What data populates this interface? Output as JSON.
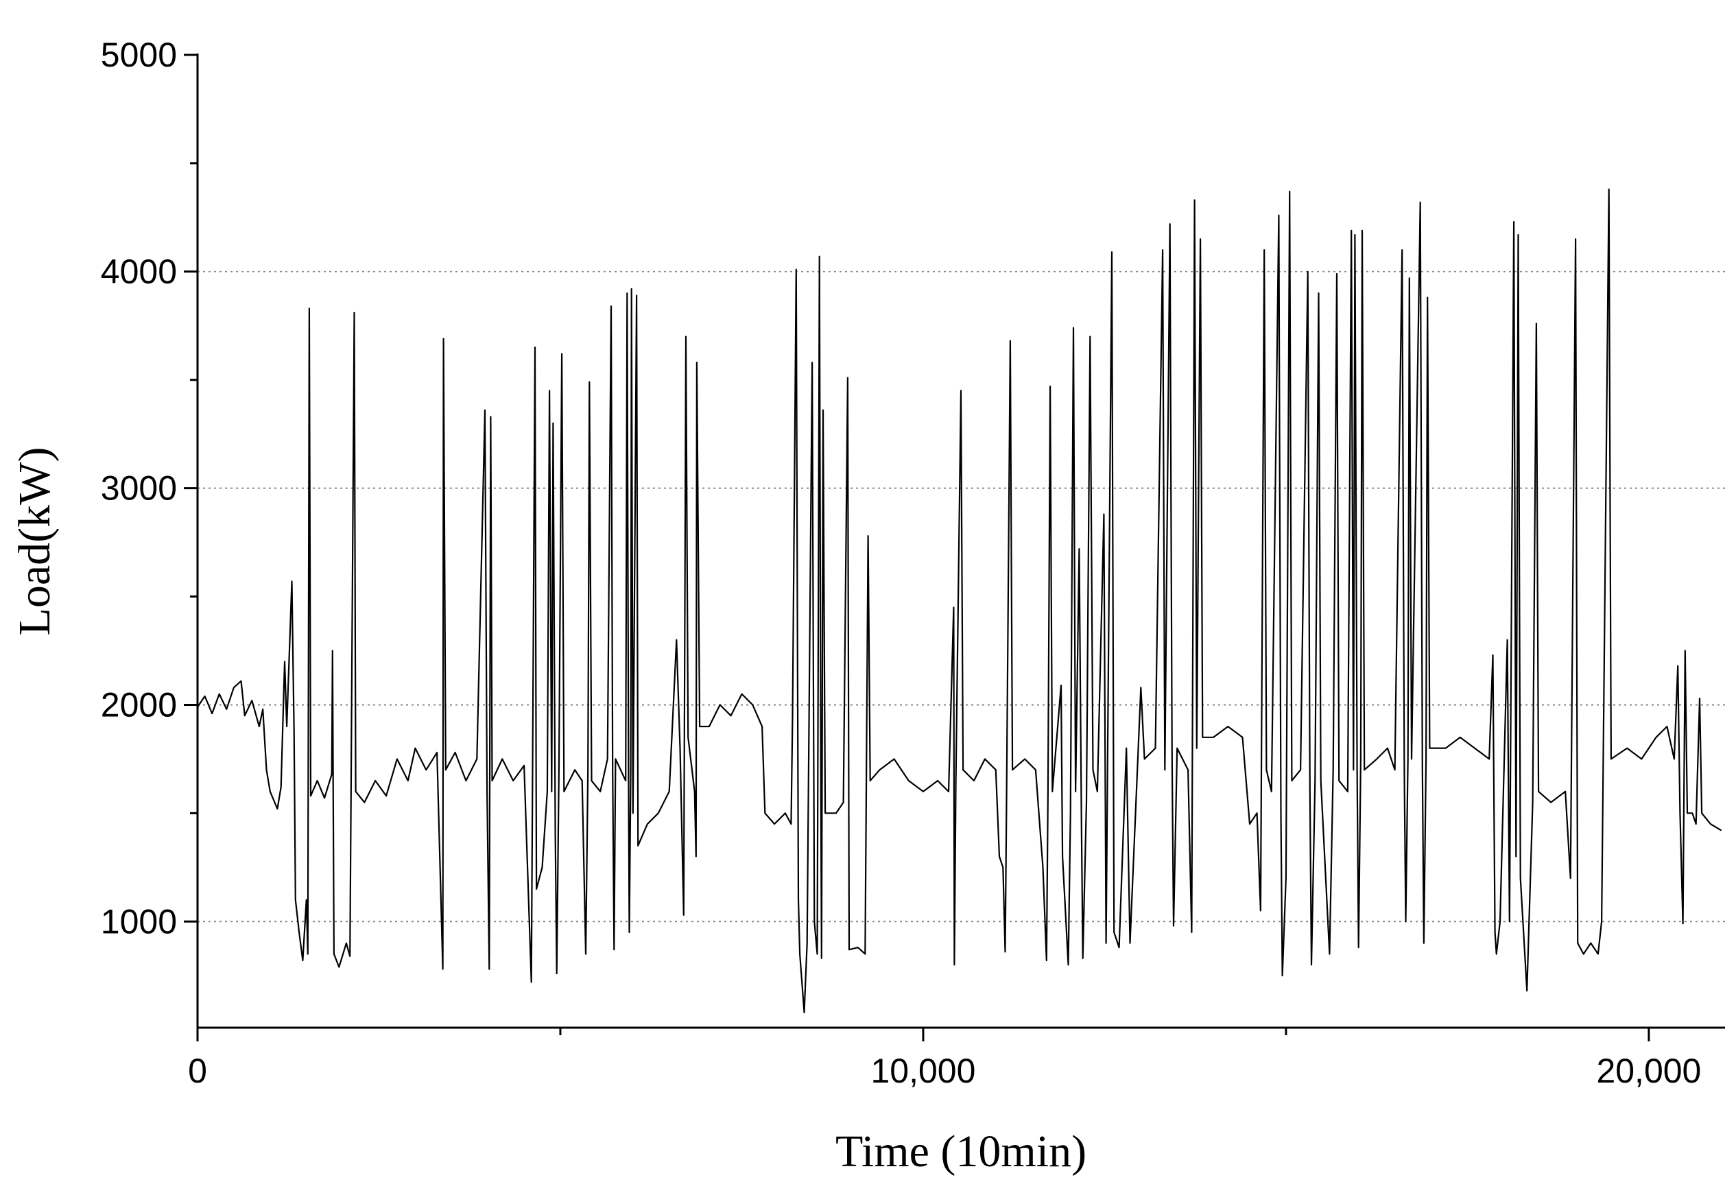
{
  "chart_data": {
    "type": "line",
    "x_label": "Time (10min)",
    "y_label": "Load(kW)",
    "xlim": [
      0,
      21050
    ],
    "ylim": [
      510,
      5000
    ],
    "xticks": [
      0,
      {
        "value": 10000,
        "label": "10,000"
      },
      {
        "value": 20000,
        "label": "20,000"
      }
    ],
    "xminor": [
      5000,
      15000
    ],
    "yticks": [
      1000,
      2000,
      3000,
      4000,
      5000
    ],
    "yminor": [
      1500,
      2500,
      3500,
      4500
    ],
    "grid": true,
    "x": [
      0,
      100,
      200,
      300,
      400,
      500,
      600,
      650,
      750,
      850,
      900,
      950,
      1000,
      1100,
      1150,
      1200,
      1230,
      1300,
      1330,
      1350,
      1400,
      1450,
      1500,
      1520,
      1540,
      1560,
      1650,
      1750,
      1850,
      1860,
      1880,
      1950,
      2050,
      2100,
      2160,
      2180,
      2300,
      2450,
      2600,
      2750,
      2900,
      3000,
      3150,
      3300,
      3380,
      3390,
      3420,
      3550,
      3700,
      3850,
      3960,
      3990,
      4020,
      4040,
      4060,
      4200,
      4350,
      4500,
      4600,
      4650,
      4670,
      4750,
      4820,
      4850,
      4880,
      4900,
      4930,
      4950,
      4980,
      5020,
      5050,
      5200,
      5300,
      5350,
      5380,
      5400,
      5430,
      5550,
      5650,
      5700,
      5720,
      5740,
      5760,
      5900,
      5920,
      5940,
      5950,
      5970,
      5980,
      6000,
      6050,
      6070,
      6200,
      6350,
      6500,
      6550,
      6600,
      6650,
      6700,
      6730,
      6760,
      6850,
      6870,
      6880,
      6920,
      7050,
      7200,
      7350,
      7500,
      7650,
      7780,
      7820,
      7950,
      8100,
      8180,
      8200,
      8250,
      8280,
      8300,
      8360,
      8400,
      8470,
      8500,
      8540,
      8570,
      8590,
      8600,
      8620,
      8650,
      8800,
      8900,
      8960,
      8980,
      9100,
      9200,
      9240,
      9270,
      9400,
      9600,
      9800,
      10000,
      10200,
      10350,
      10420,
      10430,
      10450,
      10520,
      10550,
      10700,
      10850,
      11000,
      11050,
      11100,
      11130,
      11150,
      11200,
      11230,
      11400,
      11550,
      11650,
      11700,
      11720,
      11750,
      11780,
      11900,
      11920,
      12000,
      12030,
      12070,
      12100,
      12150,
      12180,
      12200,
      12250,
      12300,
      12340,
      12400,
      12490,
      12520,
      12600,
      12630,
      12700,
      12800,
      12850,
      13000,
      13050,
      13200,
      13300,
      13330,
      13400,
      13430,
      13450,
      13500,
      13650,
      13700,
      13740,
      13770,
      13820,
      13850,
      14000,
      14200,
      14400,
      14500,
      14600,
      14650,
      14700,
      14730,
      14800,
      14900,
      14930,
      14950,
      15000,
      15050,
      15080,
      15200,
      15300,
      15330,
      15350,
      15400,
      15450,
      15480,
      15600,
      15650,
      15700,
      15730,
      15850,
      15900,
      15930,
      15950,
      15980,
      16000,
      16030,
      16050,
      16080,
      16250,
      16400,
      16500,
      16600,
      16630,
      16650,
      16680,
      16700,
      16730,
      16850,
      16880,
      16900,
      16930,
      16950,
      16980,
      17200,
      17400,
      17600,
      17800,
      17850,
      17880,
      17900,
      17950,
      18050,
      18080,
      18140,
      18170,
      18200,
      18230,
      18320,
      18400,
      18450,
      18480,
      18650,
      18850,
      18920,
      18990,
      19020,
      19100,
      19200,
      19300,
      19350,
      19450,
      19480,
      19700,
      19900,
      20100,
      20250,
      20350,
      20400,
      20430,
      20470,
      20500,
      20530,
      20600,
      20650,
      20700,
      20730,
      20850,
      21000
    ],
    "series": [
      {
        "color": "#000000",
        "values": [
          1990,
          2040,
          1960,
          2050,
          1980,
          2080,
          2110,
          1950,
          2020,
          1900,
          1980,
          1700,
          1600,
          1520,
          1620,
          2200,
          1900,
          2570,
          1880,
          1100,
          950,
          820,
          1100,
          850,
          3830,
          1580,
          1650,
          1570,
          1680,
          2250,
          850,
          790,
          900,
          840,
          3810,
          1600,
          1550,
          1650,
          1580,
          1750,
          1650,
          1800,
          1700,
          1780,
          780,
          3690,
          1700,
          1780,
          1650,
          1750,
          3360,
          1600,
          780,
          3330,
          1650,
          1750,
          1650,
          1720,
          720,
          3650,
          1150,
          1250,
          1600,
          3450,
          1600,
          3300,
          1400,
          760,
          1700,
          3620,
          1600,
          1700,
          1650,
          850,
          1700,
          3490,
          1650,
          1600,
          1750,
          3840,
          1700,
          870,
          1750,
          1650,
          3900,
          1650,
          950,
          1700,
          3920,
          1500,
          3890,
          1350,
          1450,
          1500,
          1600,
          1950,
          2300,
          1800,
          1030,
          3700,
          1850,
          1600,
          1300,
          3580,
          1900,
          1900,
          2000,
          1950,
          2050,
          2000,
          1900,
          1500,
          1450,
          1500,
          1450,
          1950,
          4010,
          1100,
          850,
          580,
          900,
          3580,
          1000,
          850,
          4070,
          1600,
          830,
          3360,
          1500,
          1500,
          1550,
          3510,
          870,
          880,
          850,
          2780,
          1650,
          1700,
          1750,
          1650,
          1600,
          1650,
          1600,
          2450,
          800,
          1650,
          3450,
          1700,
          1650,
          1750,
          1700,
          1300,
          1250,
          860,
          1600,
          3680,
          1700,
          1750,
          1700,
          1250,
          820,
          1600,
          3470,
          1600,
          2090,
          1300,
          800,
          1500,
          3740,
          1600,
          2720,
          1500,
          830,
          1550,
          3700,
          1700,
          1600,
          2880,
          900,
          4090,
          950,
          880,
          1800,
          900,
          2080,
          1750,
          1800,
          4100,
          1700,
          4220,
          1750,
          980,
          1800,
          1700,
          950,
          4330,
          1800,
          4150,
          1850,
          1850,
          1900,
          1850,
          1450,
          1500,
          1050,
          4100,
          1700,
          1600,
          4260,
          1500,
          750,
          1200,
          4370,
          1650,
          1700,
          4000,
          1600,
          800,
          1650,
          3900,
          1650,
          850,
          1700,
          3990,
          1650,
          1600,
          4190,
          1700,
          4170,
          1700,
          880,
          1750,
          4190,
          1700,
          1750,
          1800,
          1700,
          4100,
          1700,
          1000,
          1750,
          3970,
          1750,
          4320,
          1700,
          900,
          1750,
          3880,
          1800,
          1800,
          1850,
          1800,
          1750,
          2230,
          950,
          850,
          1000,
          2300,
          1000,
          4230,
          1300,
          4170,
          1200,
          680,
          1550,
          3760,
          1600,
          1550,
          1600,
          1200,
          4150,
          900,
          850,
          900,
          850,
          1000,
          4380,
          1750,
          1800,
          1750,
          1850,
          1900,
          1750,
          2180,
          1500,
          990,
          2250,
          1500,
          1500,
          1450,
          2030,
          1500,
          1450,
          1420
        ]
      }
    ]
  }
}
